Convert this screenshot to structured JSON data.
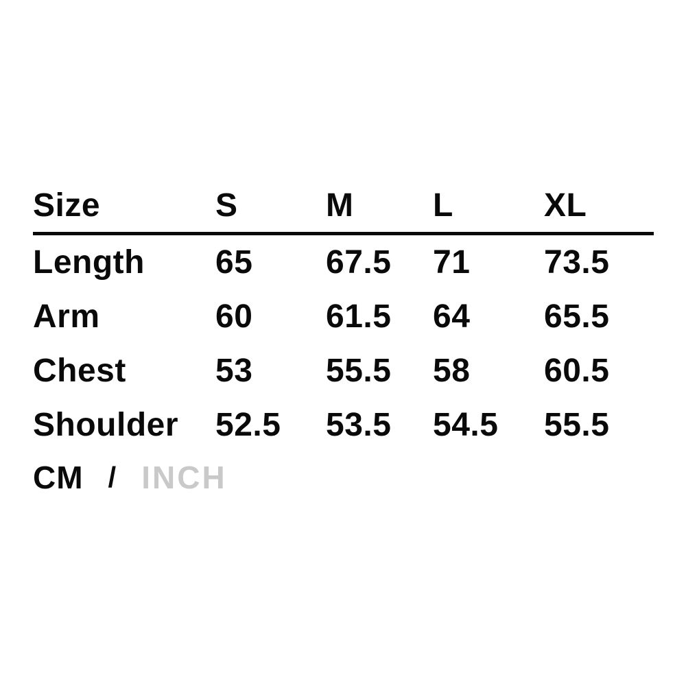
{
  "size_chart": {
    "header": {
      "label": "Size",
      "sizes": [
        "S",
        "M",
        "L",
        "XL"
      ]
    },
    "rows": [
      {
        "label": "Length",
        "values": [
          "65",
          "67.5",
          "71",
          "73.5"
        ]
      },
      {
        "label": "Arm",
        "values": [
          "60",
          "61.5",
          "64",
          "65.5"
        ]
      },
      {
        "label": "Chest",
        "values": [
          "53",
          "55.5",
          "58",
          "60.5"
        ]
      },
      {
        "label": "Shoulder",
        "values": [
          "52.5",
          "53.5",
          "54.5",
          "55.5"
        ]
      }
    ]
  },
  "unit_toggle": {
    "cm_label": "CM",
    "separator": "/",
    "inch_label": "INCH",
    "active_unit": "CM"
  },
  "colors": {
    "background": "#ffffff",
    "text": "#0a0a0a",
    "rule": "#0a0a0a",
    "inactive_unit": "#c9c9c9"
  }
}
